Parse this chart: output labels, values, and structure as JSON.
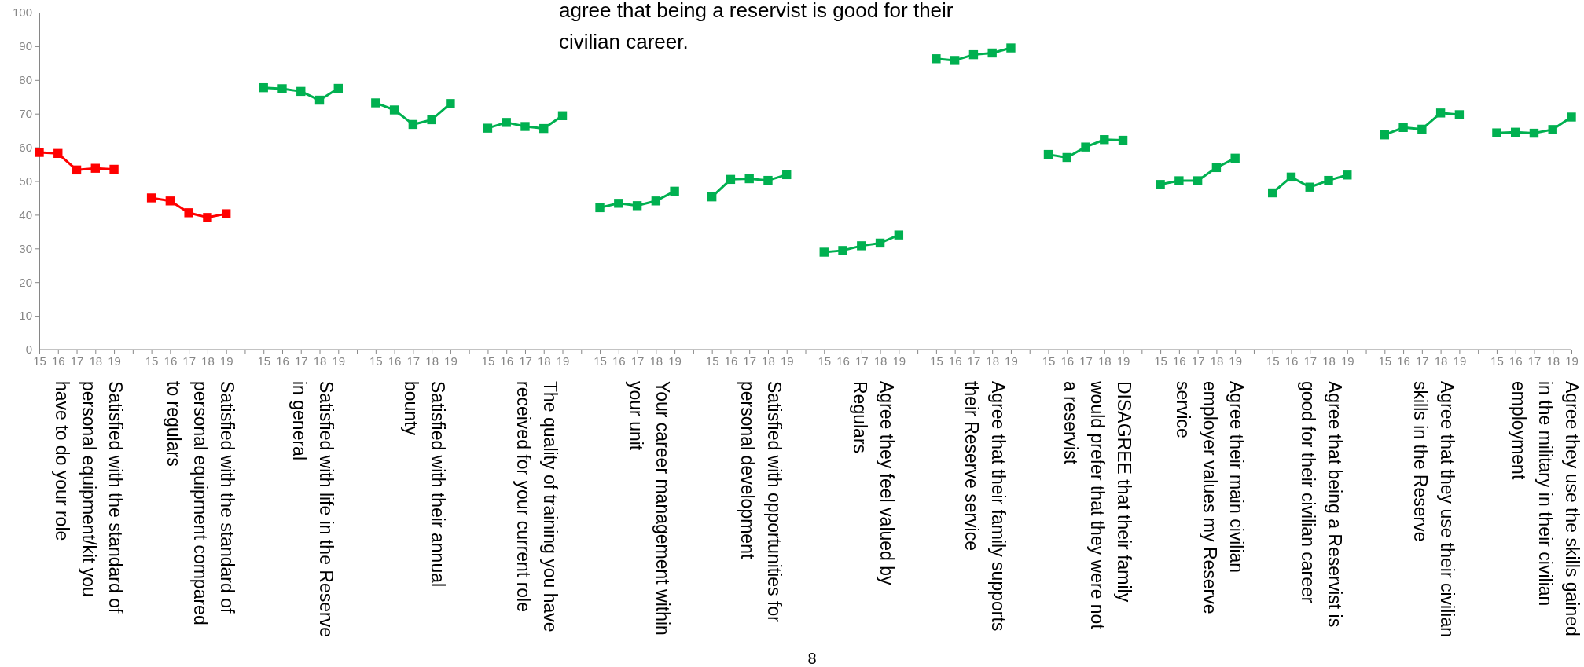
{
  "chart_data": {
    "type": "line",
    "categories": [
      "15",
      "16",
      "17",
      "18",
      "19",
      null,
      "15",
      "16",
      "17",
      "18",
      "19",
      null,
      "15",
      "16",
      "17",
      "18",
      "19",
      null,
      "15",
      "16",
      "17",
      "18",
      "19",
      null,
      "15",
      "16",
      "17",
      "18",
      "19",
      null,
      "15",
      "16",
      "17",
      "18",
      "19",
      null,
      "15",
      "16",
      "17",
      "18",
      "19",
      null,
      "15",
      "16",
      "17",
      "18",
      "19",
      null,
      "15",
      "16",
      "17",
      "18",
      "19",
      null,
      "15",
      "16",
      "17",
      "18",
      "19",
      null,
      "15",
      "16",
      "17",
      "18",
      "19",
      null,
      "15",
      "16",
      "17",
      "18",
      "19",
      null,
      "15",
      "16",
      "17",
      "18",
      "19",
      null,
      "15",
      "16",
      "17",
      "18",
      "19"
    ],
    "series": [
      {
        "color": "#ff0000",
        "values": [
          58.5,
          58.2,
          53.3,
          53.8,
          53.5,
          null,
          null,
          null,
          null,
          null,
          null,
          null,
          null,
          null,
          null,
          null,
          null,
          null,
          null,
          null,
          null,
          null,
          null,
          null,
          null,
          null,
          null,
          null,
          null,
          null,
          null,
          null,
          null,
          null,
          null,
          null,
          null,
          null,
          null,
          null,
          null,
          null,
          null,
          null,
          null,
          null,
          null,
          null,
          null,
          null,
          null,
          null,
          null,
          null,
          null,
          null,
          null,
          null,
          null,
          null,
          null,
          null,
          null,
          null,
          null,
          null,
          null,
          null,
          null,
          null,
          null,
          null,
          null,
          null,
          null,
          null,
          null,
          null,
          null,
          null,
          null,
          null,
          null
        ]
      },
      {
        "color": "#ff0000",
        "values": [
          null,
          null,
          null,
          null,
          null,
          null,
          45.0,
          44.1,
          40.6,
          39.2,
          40.3,
          null,
          null,
          null,
          null,
          null,
          null,
          null,
          null,
          null,
          null,
          null,
          null,
          null,
          null,
          null,
          null,
          null,
          null,
          null,
          null,
          null,
          null,
          null,
          null,
          null,
          null,
          null,
          null,
          null,
          null,
          null,
          null,
          null,
          null,
          null,
          null,
          null,
          null,
          null,
          null,
          null,
          null,
          null,
          null,
          null,
          null,
          null,
          null,
          null,
          null,
          null,
          null,
          null,
          null,
          null,
          null,
          null,
          null,
          null,
          null,
          null,
          null,
          null,
          null,
          null,
          null,
          null,
          null,
          null,
          null,
          null,
          null
        ]
      },
      {
        "color": "#00b050",
        "values": [
          null,
          null,
          null,
          null,
          null,
          null,
          null,
          null,
          null,
          null,
          null,
          null,
          77.7,
          77.4,
          76.6,
          74.0,
          77.5,
          null,
          null,
          null,
          null,
          null,
          null,
          null,
          null,
          null,
          null,
          null,
          null,
          null,
          null,
          null,
          null,
          null,
          null,
          null,
          null,
          null,
          null,
          null,
          null,
          null,
          null,
          null,
          null,
          null,
          null,
          null,
          null,
          null,
          null,
          null,
          null,
          null,
          null,
          null,
          null,
          null,
          null,
          null,
          null,
          null,
          null,
          null,
          null,
          null,
          null,
          null,
          null,
          null,
          null,
          null,
          null,
          null,
          null,
          null,
          null,
          null,
          null,
          null,
          null,
          null,
          null
        ]
      },
      {
        "color": "#00b050",
        "values": [
          null,
          null,
          null,
          null,
          null,
          null,
          null,
          null,
          null,
          null,
          null,
          null,
          null,
          null,
          null,
          null,
          null,
          null,
          73.2,
          71.1,
          66.8,
          68.2,
          73.0,
          null,
          null,
          null,
          null,
          null,
          null,
          null,
          null,
          null,
          null,
          null,
          null,
          null,
          null,
          null,
          null,
          null,
          null,
          null,
          null,
          null,
          null,
          null,
          null,
          null,
          null,
          null,
          null,
          null,
          null,
          null,
          null,
          null,
          null,
          null,
          null,
          null,
          null,
          null,
          null,
          null,
          null,
          null,
          null,
          null,
          null,
          null,
          null,
          null,
          null,
          null,
          null,
          null,
          null,
          null,
          null,
          null,
          null,
          null,
          null
        ]
      },
      {
        "color": "#00b050",
        "values": [
          null,
          null,
          null,
          null,
          null,
          null,
          null,
          null,
          null,
          null,
          null,
          null,
          null,
          null,
          null,
          null,
          null,
          null,
          null,
          null,
          null,
          null,
          null,
          null,
          65.7,
          67.4,
          66.2,
          65.6,
          69.4,
          null,
          null,
          null,
          null,
          null,
          null,
          null,
          null,
          null,
          null,
          null,
          null,
          null,
          null,
          null,
          null,
          null,
          null,
          null,
          null,
          null,
          null,
          null,
          null,
          null,
          null,
          null,
          null,
          null,
          null,
          null,
          null,
          null,
          null,
          null,
          null,
          null,
          null,
          null,
          null,
          null,
          null,
          null,
          null,
          null,
          null,
          null,
          null,
          null,
          null,
          null,
          null,
          null,
          null
        ]
      },
      {
        "color": "#00b050",
        "values": [
          null,
          null,
          null,
          null,
          null,
          null,
          null,
          null,
          null,
          null,
          null,
          null,
          null,
          null,
          null,
          null,
          null,
          null,
          null,
          null,
          null,
          null,
          null,
          null,
          null,
          null,
          null,
          null,
          null,
          null,
          42.1,
          43.4,
          42.7,
          44.1,
          47.0,
          null,
          null,
          null,
          null,
          null,
          null,
          null,
          null,
          null,
          null,
          null,
          null,
          null,
          null,
          null,
          null,
          null,
          null,
          null,
          null,
          null,
          null,
          null,
          null,
          null,
          null,
          null,
          null,
          null,
          null,
          null,
          null,
          null,
          null,
          null,
          null,
          null,
          null,
          null,
          null,
          null,
          null,
          null,
          null,
          null,
          null,
          null,
          null
        ]
      },
      {
        "color": "#00b050",
        "values": [
          null,
          null,
          null,
          null,
          null,
          null,
          null,
          null,
          null,
          null,
          null,
          null,
          null,
          null,
          null,
          null,
          null,
          null,
          null,
          null,
          null,
          null,
          null,
          null,
          null,
          null,
          null,
          null,
          null,
          null,
          null,
          null,
          null,
          null,
          null,
          null,
          45.3,
          50.5,
          50.7,
          50.2,
          51.9,
          null,
          null,
          null,
          null,
          null,
          null,
          null,
          null,
          null,
          null,
          null,
          null,
          null,
          null,
          null,
          null,
          null,
          null,
          null,
          null,
          null,
          null,
          null,
          null,
          null,
          null,
          null,
          null,
          null,
          null,
          null,
          null,
          null,
          null,
          null,
          null,
          null,
          null,
          null,
          null,
          null,
          null
        ]
      },
      {
        "color": "#00b050",
        "values": [
          null,
          null,
          null,
          null,
          null,
          null,
          null,
          null,
          null,
          null,
          null,
          null,
          null,
          null,
          null,
          null,
          null,
          null,
          null,
          null,
          null,
          null,
          null,
          null,
          null,
          null,
          null,
          null,
          null,
          null,
          null,
          null,
          null,
          null,
          null,
          null,
          null,
          null,
          null,
          null,
          null,
          null,
          28.9,
          29.4,
          30.8,
          31.6,
          34.0,
          null,
          null,
          null,
          null,
          null,
          null,
          null,
          null,
          null,
          null,
          null,
          null,
          null,
          null,
          null,
          null,
          null,
          null,
          null,
          null,
          null,
          null,
          null,
          null,
          null,
          null,
          null,
          null,
          null,
          null,
          null,
          null,
          null,
          null,
          null,
          null
        ]
      },
      {
        "color": "#00b050",
        "values": [
          null,
          null,
          null,
          null,
          null,
          null,
          null,
          null,
          null,
          null,
          null,
          null,
          null,
          null,
          null,
          null,
          null,
          null,
          null,
          null,
          null,
          null,
          null,
          null,
          null,
          null,
          null,
          null,
          null,
          null,
          null,
          null,
          null,
          null,
          null,
          null,
          null,
          null,
          null,
          null,
          null,
          null,
          null,
          null,
          null,
          null,
          null,
          null,
          86.3,
          85.8,
          87.5,
          88.0,
          89.5,
          null,
          null,
          null,
          null,
          null,
          null,
          null,
          null,
          null,
          null,
          null,
          null,
          null,
          null,
          null,
          null,
          null,
          null,
          null,
          null,
          null,
          null,
          null,
          null,
          null,
          null,
          null,
          null,
          null,
          null
        ]
      },
      {
        "color": "#00b050",
        "values": [
          null,
          null,
          null,
          null,
          null,
          null,
          null,
          null,
          null,
          null,
          null,
          null,
          null,
          null,
          null,
          null,
          null,
          null,
          null,
          null,
          null,
          null,
          null,
          null,
          null,
          null,
          null,
          null,
          null,
          null,
          null,
          null,
          null,
          null,
          null,
          null,
          null,
          null,
          null,
          null,
          null,
          null,
          null,
          null,
          null,
          null,
          null,
          null,
          null,
          null,
          null,
          null,
          null,
          null,
          57.9,
          57.0,
          60.1,
          62.3,
          62.1,
          null,
          null,
          null,
          null,
          null,
          null,
          null,
          null,
          null,
          null,
          null,
          null,
          null,
          null,
          null,
          null,
          null,
          null,
          null,
          null,
          null,
          null,
          null,
          null
        ]
      },
      {
        "color": "#00b050",
        "values": [
          null,
          null,
          null,
          null,
          null,
          null,
          null,
          null,
          null,
          null,
          null,
          null,
          null,
          null,
          null,
          null,
          null,
          null,
          null,
          null,
          null,
          null,
          null,
          null,
          null,
          null,
          null,
          null,
          null,
          null,
          null,
          null,
          null,
          null,
          null,
          null,
          null,
          null,
          null,
          null,
          null,
          null,
          null,
          null,
          null,
          null,
          null,
          null,
          null,
          null,
          null,
          null,
          null,
          null,
          null,
          null,
          null,
          null,
          null,
          null,
          49.0,
          50.1,
          50.1,
          54.0,
          56.8,
          null,
          null,
          null,
          null,
          null,
          null,
          null,
          null,
          null,
          null,
          null,
          null,
          null,
          null,
          null,
          null,
          null,
          null
        ]
      },
      {
        "color": "#00b050",
        "values": [
          null,
          null,
          null,
          null,
          null,
          null,
          null,
          null,
          null,
          null,
          null,
          null,
          null,
          null,
          null,
          null,
          null,
          null,
          null,
          null,
          null,
          null,
          null,
          null,
          null,
          null,
          null,
          null,
          null,
          null,
          null,
          null,
          null,
          null,
          null,
          null,
          null,
          null,
          null,
          null,
          null,
          null,
          null,
          null,
          null,
          null,
          null,
          null,
          null,
          null,
          null,
          null,
          null,
          null,
          null,
          null,
          null,
          null,
          null,
          null,
          null,
          null,
          null,
          null,
          null,
          null,
          46.5,
          51.2,
          48.2,
          50.2,
          51.8,
          null,
          null,
          null,
          null,
          null,
          null,
          null,
          null,
          null,
          null,
          null,
          null
        ]
      },
      {
        "color": "#00b050",
        "values": [
          null,
          null,
          null,
          null,
          null,
          null,
          null,
          null,
          null,
          null,
          null,
          null,
          null,
          null,
          null,
          null,
          null,
          null,
          null,
          null,
          null,
          null,
          null,
          null,
          null,
          null,
          null,
          null,
          null,
          null,
          null,
          null,
          null,
          null,
          null,
          null,
          null,
          null,
          null,
          null,
          null,
          null,
          null,
          null,
          null,
          null,
          null,
          null,
          null,
          null,
          null,
          null,
          null,
          null,
          null,
          null,
          null,
          null,
          null,
          null,
          null,
          null,
          null,
          null,
          null,
          null,
          null,
          null,
          null,
          null,
          null,
          null,
          63.7,
          65.9,
          65.4,
          70.2,
          69.7,
          null,
          null,
          null,
          null,
          null,
          null
        ]
      },
      {
        "color": "#00b050",
        "values": [
          null,
          null,
          null,
          null,
          null,
          null,
          null,
          null,
          null,
          null,
          null,
          null,
          null,
          null,
          null,
          null,
          null,
          null,
          null,
          null,
          null,
          null,
          null,
          null,
          null,
          null,
          null,
          null,
          null,
          null,
          null,
          null,
          null,
          null,
          null,
          null,
          null,
          null,
          null,
          null,
          null,
          null,
          null,
          null,
          null,
          null,
          null,
          null,
          null,
          null,
          null,
          null,
          null,
          null,
          null,
          null,
          null,
          null,
          null,
          null,
          null,
          null,
          null,
          null,
          null,
          null,
          null,
          null,
          null,
          null,
          null,
          null,
          null,
          null,
          null,
          null,
          null,
          null,
          64.3,
          64.5,
          64.2,
          65.3,
          69.0
        ]
      }
    ],
    "ylim": [
      0,
      100
    ],
    "yticks": [
      0,
      10,
      20,
      30,
      40,
      50,
      60,
      70,
      80,
      90,
      100
    ],
    "grid": false,
    "legend": false,
    "marker": "square",
    "line_style": "solid",
    "annotations": [
      "Satisfied with the standard of personal equipment/kit you have to do your role",
      "Satisfied with the standard of personal equipment compared to regulars",
      "Satisfied with life in the Reserve in general",
      "Satisfied with their annual bounty",
      "The quality of training you have received for your current role",
      "Your career management within your unit",
      "Satisfied with opportunities for personal development",
      "Agree they feel valued by Regulars",
      "Agree that their family supports their Reserve service",
      "DISAGREE that their family would prefer that they were not a reservist",
      "Agree their main civilian employer values my Reserve service",
      "Agree that being a Reservist is good for their civilian career",
      "Agree that they use their civilian skills in the Reserve",
      "Agree they use the skills gained in the military in their civilian employment",
      "agree that being a reservist is good for their civilian career.",
      "8"
    ]
  }
}
